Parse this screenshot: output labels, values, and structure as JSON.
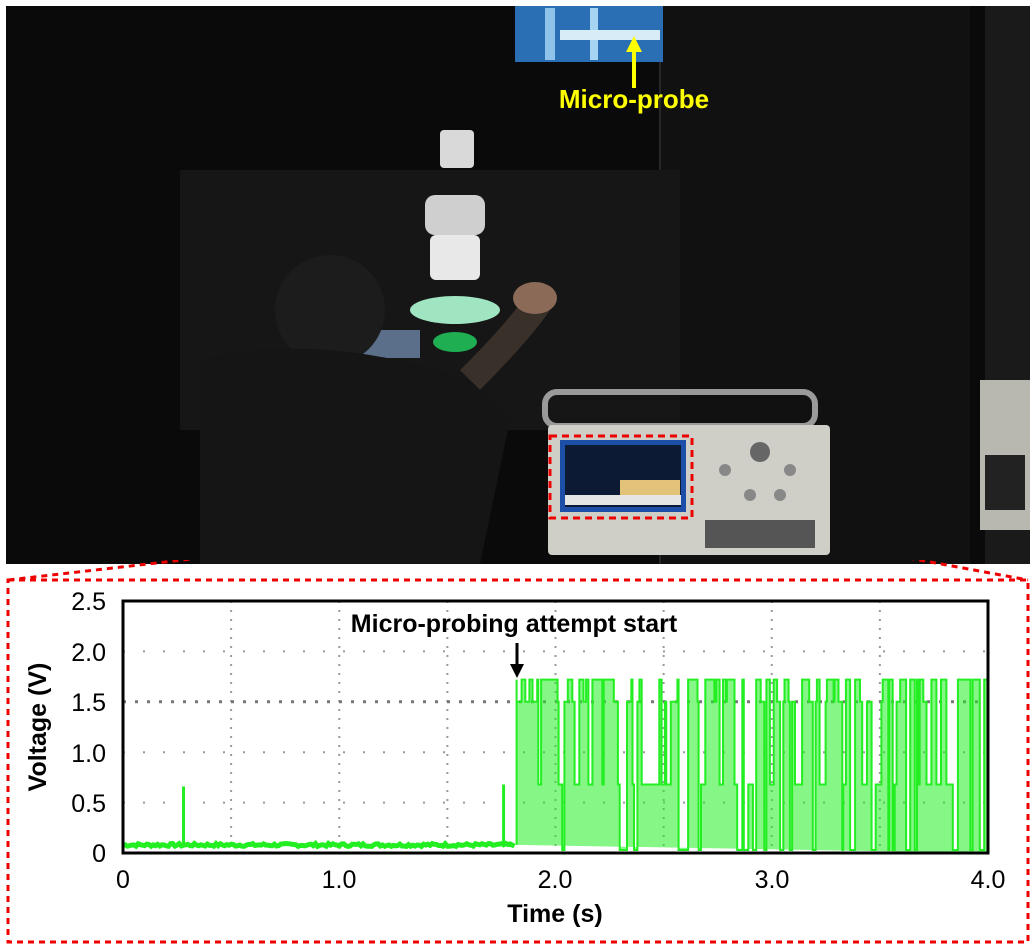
{
  "photo": {
    "callout_label": "Micro-probe"
  },
  "chart_data": {
    "type": "line",
    "xlabel": "Time (s)",
    "ylabel": "Voltage (V)",
    "xlim": [
      0,
      4.0
    ],
    "ylim": [
      0,
      2.5
    ],
    "x_ticks": [
      "0",
      "1.0",
      "2.0",
      "3.0",
      "4.0"
    ],
    "y_ticks": [
      "0",
      "0.5",
      "1.0",
      "1.5",
      "2.0",
      "2.5"
    ],
    "grid": true,
    "annotation": {
      "text": "Micro-probing attempt start",
      "x": 1.82,
      "y": 1.72
    },
    "series": [
      {
        "color": "#22ee22",
        "baseline": 0.08,
        "spikes": [
          {
            "x": 0.28,
            "y": 0.66
          },
          {
            "x": 1.76,
            "y": 0.68
          }
        ],
        "active_region": {
          "x_start": 1.82,
          "x_end": 4.0,
          "levels": [
            0.0,
            0.68,
            1.5,
            1.72
          ]
        }
      }
    ],
    "colors": {
      "line": "#22ee22",
      "highlight": "#ee0000",
      "callout": "#ffff00"
    }
  }
}
